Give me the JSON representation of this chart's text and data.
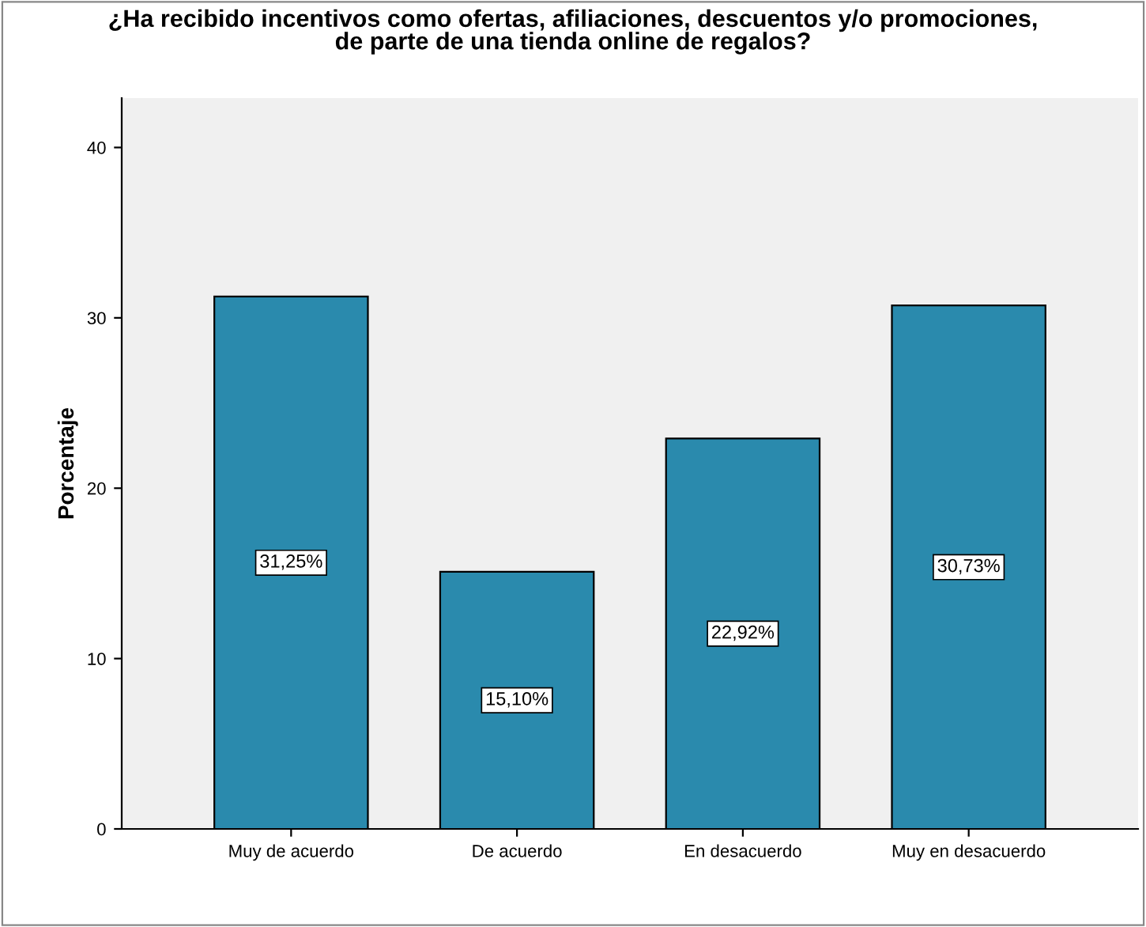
{
  "chart_data": {
    "type": "bar",
    "title": "¿Ha recibido incentivos como ofertas, afiliaciones, descuentos y/o promociones,\nde parte de una tienda online de regalos?",
    "ylabel": "Porcentaje",
    "categories": [
      "Muy de acuerdo",
      "De acuerdo",
      "En desacuerdo",
      "Muy en desacuerdo"
    ],
    "values": [
      31.25,
      15.1,
      22.92,
      30.73
    ],
    "value_labels": [
      "31,25%",
      "15,10%",
      "22,92%",
      "30,73%"
    ],
    "color": "#2a8aad",
    "ylim": [
      0,
      42.9
    ],
    "yticks": [
      0,
      10,
      20,
      30,
      40
    ],
    "grid": false,
    "legend": false
  }
}
